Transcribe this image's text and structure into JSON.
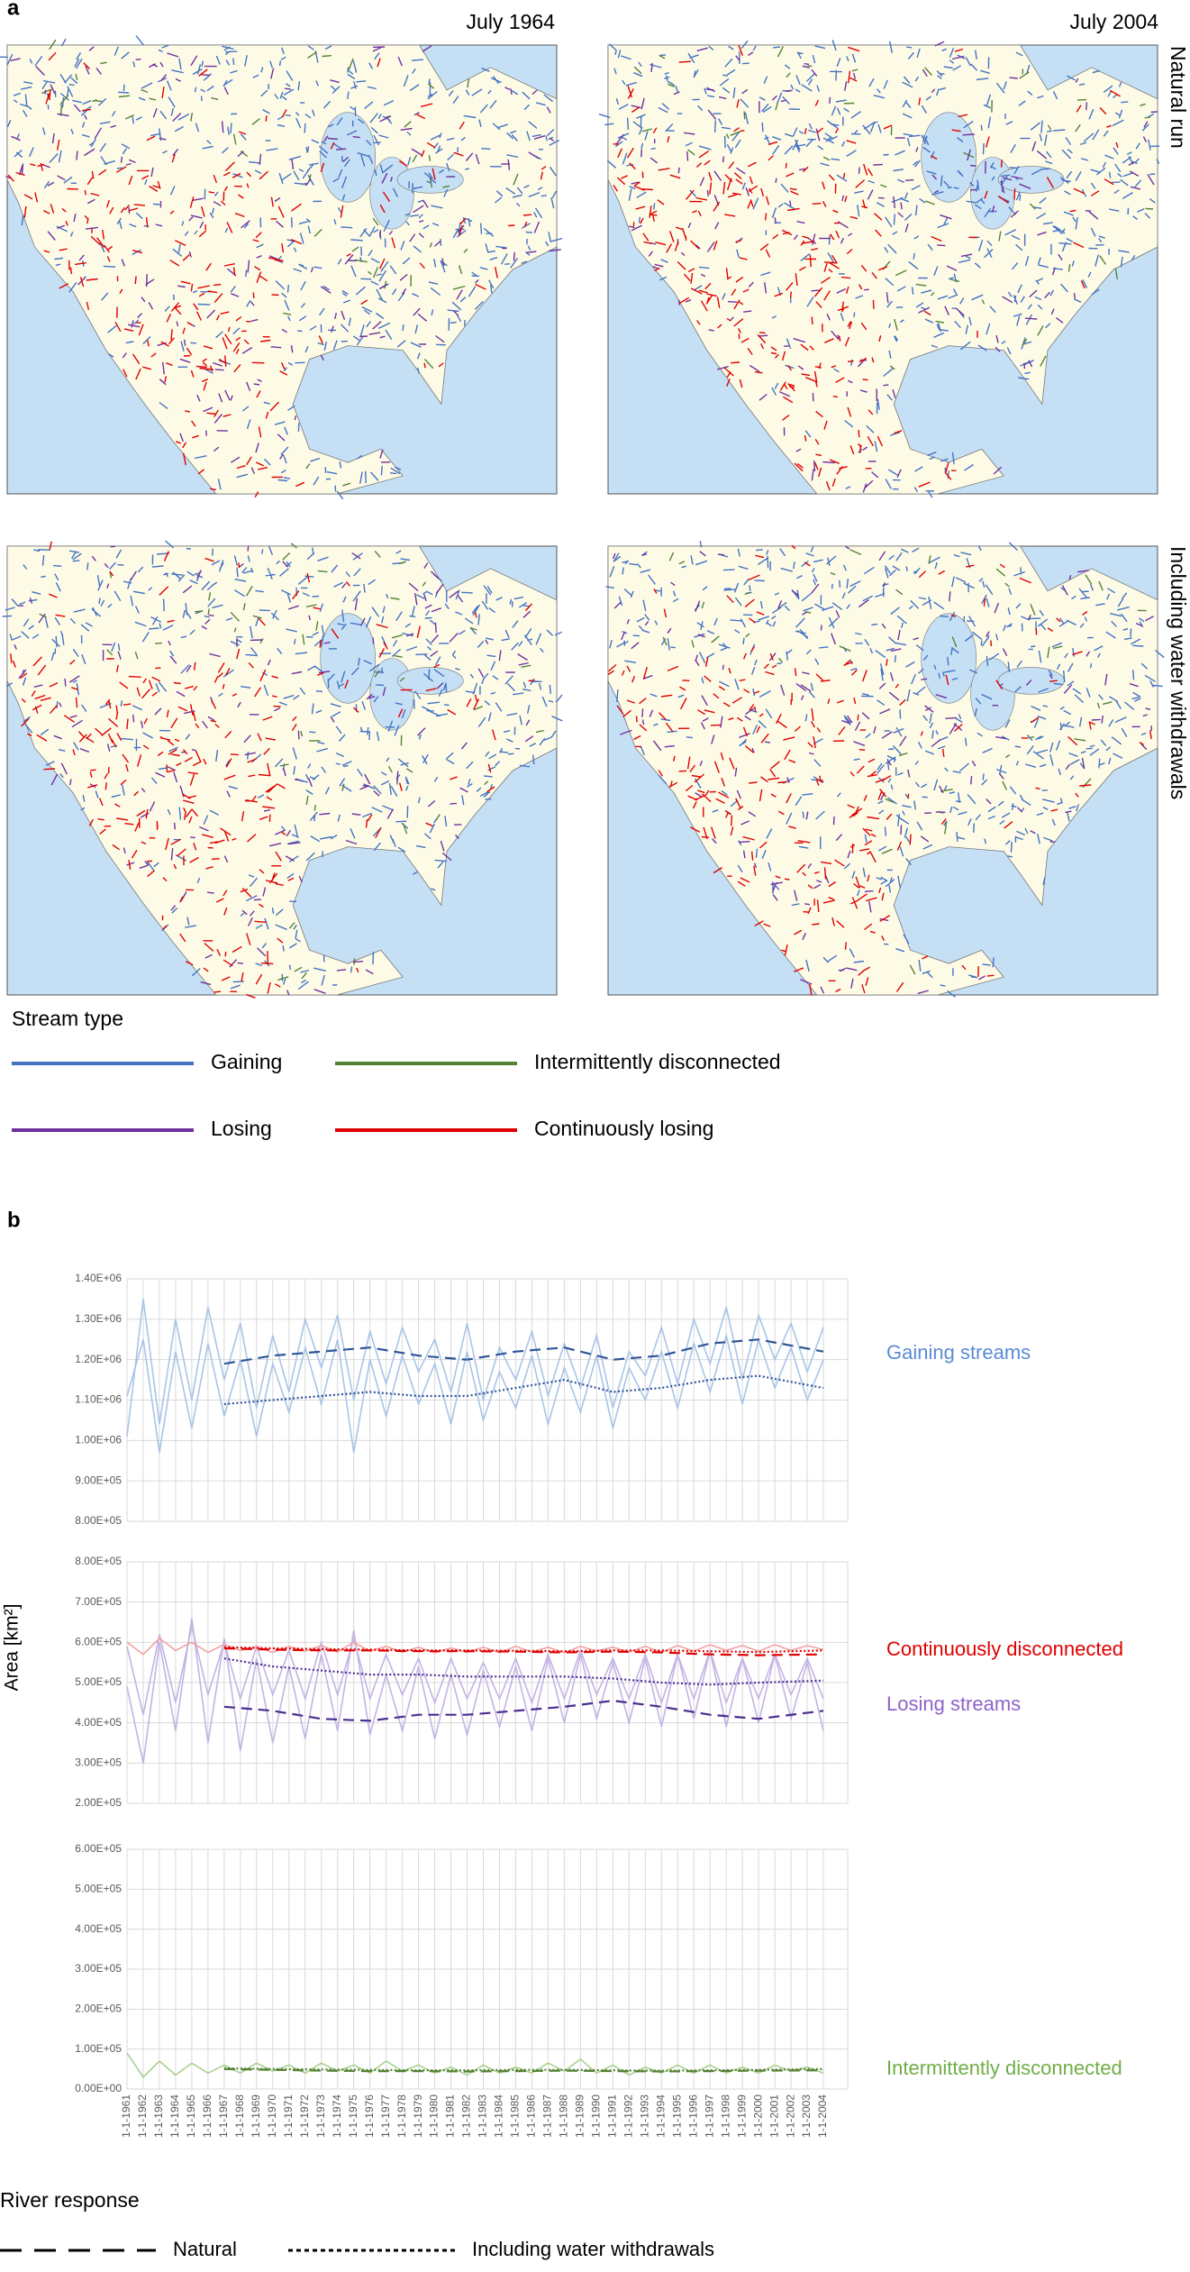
{
  "panel_a": {
    "label": "a",
    "columns": [
      "July 1964",
      "July 2004"
    ],
    "rows": [
      "Natural run",
      "Including water withdrawals"
    ],
    "legend_title": "Stream type",
    "legend": [
      {
        "name": "Gaining",
        "color": "#4472c4"
      },
      {
        "name": "Intermittently disconnected",
        "color": "#548235"
      },
      {
        "name": "Losing",
        "color": "#7030a0"
      },
      {
        "name": "Continuously losing",
        "color": "#e00000"
      }
    ]
  },
  "panel_b": {
    "label": "b",
    "y_axis_label": "Area [km²]",
    "legend_title": "River response",
    "legend": [
      {
        "name": "Natural",
        "line_style": "dashed"
      },
      {
        "name": "Including water withdrawals",
        "line_style": "dotted"
      }
    ]
  },
  "chart_data": [
    {
      "type": "line",
      "labels": [
        {
          "text": "Gaining streams",
          "color": "#5b8bd4"
        }
      ],
      "ylim": [
        800000,
        1400000
      ],
      "yticks": [
        {
          "value": 800000,
          "label": "8.00E+05"
        },
        {
          "value": 900000,
          "label": "9.00E+05"
        },
        {
          "value": 1000000,
          "label": "1.00E+06"
        },
        {
          "value": 1100000,
          "label": "1.10E+06"
        },
        {
          "value": 1200000,
          "label": "1.20E+06"
        },
        {
          "value": 1300000,
          "label": "1.30E+06"
        },
        {
          "value": 1400000,
          "label": "1.40E+06"
        }
      ],
      "x": [
        1961,
        1962,
        1963,
        1964,
        1965,
        1966,
        1967,
        1968,
        1969,
        1970,
        1971,
        1972,
        1973,
        1974,
        1975,
        1976,
        1977,
        1978,
        1979,
        1980,
        1981,
        1982,
        1983,
        1984,
        1985,
        1986,
        1987,
        1988,
        1989,
        1990,
        1991,
        1992,
        1993,
        1994,
        1995,
        1996,
        1997,
        1998,
        1999,
        2000,
        2001,
        2002,
        2003,
        2004
      ],
      "series": [
        {
          "color": "#a9c4e8",
          "line_style": "solid",
          "values": [
            1010000,
            1350000,
            1040000,
            1300000,
            1100000,
            1330000,
            1150000,
            1290000,
            1080000,
            1260000,
            1120000,
            1300000,
            1180000,
            1310000,
            1100000,
            1270000,
            1140000,
            1280000,
            1170000,
            1250000,
            1120000,
            1290000,
            1100000,
            1230000,
            1150000,
            1270000,
            1110000,
            1240000,
            1130000,
            1260000,
            1080000,
            1220000,
            1160000,
            1280000,
            1140000,
            1300000,
            1190000,
            1330000,
            1150000,
            1310000,
            1200000,
            1290000,
            1170000,
            1280000
          ]
        },
        {
          "color": "#a9c4e8",
          "line_style": "solid",
          "values": [
            1110000,
            1250000,
            970000,
            1220000,
            1030000,
            1240000,
            1060000,
            1200000,
            1010000,
            1190000,
            1070000,
            1230000,
            1090000,
            1250000,
            970000,
            1200000,
            1060000,
            1210000,
            1090000,
            1190000,
            1040000,
            1220000,
            1050000,
            1170000,
            1080000,
            1210000,
            1040000,
            1180000,
            1070000,
            1210000,
            1030000,
            1180000,
            1100000,
            1220000,
            1080000,
            1240000,
            1120000,
            1260000,
            1090000,
            1250000,
            1130000,
            1230000,
            1100000,
            1200000
          ]
        },
        {
          "color": "#2f5597",
          "line_style": "dashed",
          "x": [
            1967,
            1970,
            1973,
            1976,
            1979,
            1982,
            1985,
            1988,
            1991,
            1994,
            1997,
            2000,
            2004
          ],
          "values": [
            1190000,
            1210000,
            1220000,
            1230000,
            1210000,
            1200000,
            1220000,
            1230000,
            1200000,
            1210000,
            1240000,
            1250000,
            1220000
          ]
        },
        {
          "color": "#2f5597",
          "line_style": "dotted",
          "x": [
            1967,
            1970,
            1973,
            1976,
            1979,
            1982,
            1985,
            1988,
            1991,
            1994,
            1997,
            2000,
            2004
          ],
          "values": [
            1090000,
            1100000,
            1110000,
            1120000,
            1110000,
            1110000,
            1130000,
            1150000,
            1120000,
            1130000,
            1150000,
            1160000,
            1130000
          ]
        }
      ]
    },
    {
      "type": "line",
      "labels": [
        {
          "text": "Continuously disconnected",
          "color": "#e00000"
        },
        {
          "text": "Losing streams",
          "color": "#8e63c9"
        }
      ],
      "ylim": [
        200000,
        800000
      ],
      "yticks": [
        {
          "value": 200000,
          "label": "2.00E+05"
        },
        {
          "value": 300000,
          "label": "3.00E+05"
        },
        {
          "value": 400000,
          "label": "4.00E+05"
        },
        {
          "value": 500000,
          "label": "5.00E+05"
        },
        {
          "value": 600000,
          "label": "6.00E+05"
        },
        {
          "value": 700000,
          "label": "7.00E+05"
        },
        {
          "value": 800000,
          "label": "8.00E+05"
        }
      ],
      "x": [
        1961,
        1962,
        1963,
        1964,
        1965,
        1966,
        1967,
        1968,
        1969,
        1970,
        1971,
        1972,
        1973,
        1974,
        1975,
        1976,
        1977,
        1978,
        1979,
        1980,
        1981,
        1982,
        1983,
        1984,
        1985,
        1986,
        1987,
        1988,
        1989,
        1990,
        1991,
        1992,
        1993,
        1994,
        1995,
        1996,
        1997,
        1998,
        1999,
        2000,
        2001,
        2002,
        2003,
        2004
      ],
      "series": [
        {
          "color": "#c4b3e4",
          "line_style": "solid",
          "values": [
            490000,
            300000,
            600000,
            380000,
            660000,
            350000,
            610000,
            330000,
            560000,
            350000,
            540000,
            360000,
            570000,
            380000,
            630000,
            370000,
            520000,
            380000,
            540000,
            360000,
            520000,
            370000,
            530000,
            390000,
            540000,
            380000,
            560000,
            400000,
            570000,
            410000,
            550000,
            400000,
            560000,
            390000,
            570000,
            410000,
            580000,
            390000,
            560000,
            400000,
            570000,
            410000,
            550000,
            380000
          ]
        },
        {
          "color": "#c4b3e4",
          "line_style": "solid",
          "values": [
            590000,
            420000,
            620000,
            450000,
            640000,
            470000,
            600000,
            460000,
            590000,
            470000,
            580000,
            460000,
            600000,
            470000,
            610000,
            460000,
            570000,
            470000,
            560000,
            450000,
            560000,
            460000,
            550000,
            460000,
            560000,
            450000,
            570000,
            460000,
            580000,
            470000,
            560000,
            460000,
            570000,
            450000,
            570000,
            460000,
            580000,
            450000,
            560000,
            460000,
            570000,
            470000,
            560000,
            460000
          ]
        },
        {
          "color": "#f4a0a0",
          "line_style": "solid",
          "values": [
            600000,
            570000,
            610000,
            580000,
            600000,
            575000,
            595000,
            580000,
            590000,
            575000,
            590000,
            578000,
            592000,
            576000,
            600000,
            578000,
            590000,
            576000,
            588000,
            574000,
            586000,
            575000,
            588000,
            574000,
            590000,
            576000,
            588000,
            574000,
            590000,
            578000,
            588000,
            576000,
            590000,
            575000,
            592000,
            578000,
            594000,
            580000,
            592000,
            578000,
            594000,
            580000,
            592000,
            582000
          ]
        },
        {
          "color": "#4b2d8f",
          "line_style": "dashed",
          "x": [
            1967,
            1970,
            1973,
            1976,
            1979,
            1982,
            1985,
            1988,
            1991,
            1994,
            1997,
            2000,
            2004
          ],
          "values": [
            440000,
            430000,
            410000,
            405000,
            420000,
            420000,
            430000,
            440000,
            455000,
            440000,
            420000,
            410000,
            430000
          ]
        },
        {
          "color": "#4b2d8f",
          "line_style": "dotted",
          "x": [
            1967,
            1970,
            1973,
            1976,
            1979,
            1982,
            1985,
            1988,
            1991,
            1994,
            1997,
            2000,
            2004
          ],
          "values": [
            560000,
            540000,
            530000,
            520000,
            520000,
            515000,
            515000,
            515000,
            510000,
            500000,
            495000,
            500000,
            505000
          ]
        },
        {
          "color": "#e00000",
          "line_style": "dashed",
          "x": [
            1967,
            1970,
            1973,
            1976,
            1979,
            1982,
            1985,
            1988,
            1991,
            1994,
            1997,
            2000,
            2004
          ],
          "values": [
            585000,
            582000,
            580000,
            580000,
            578000,
            578000,
            577000,
            575000,
            577000,
            575000,
            570000,
            568000,
            570000
          ]
        },
        {
          "color": "#e00000",
          "line_style": "dotted",
          "x": [
            1967,
            1970,
            1973,
            1976,
            1979,
            1982,
            1985,
            1988,
            1991,
            1994,
            1997,
            2000,
            2004
          ],
          "values": [
            588000,
            585000,
            583000,
            582000,
            580000,
            580000,
            579000,
            578000,
            580000,
            580000,
            578000,
            576000,
            580000
          ]
        }
      ]
    },
    {
      "type": "line",
      "labels": [
        {
          "text": "Intermittently disconnected",
          "color": "#70ad47"
        }
      ],
      "ylim": [
        0,
        600000
      ],
      "yticks": [
        {
          "value": 0,
          "label": "0.00E+00"
        },
        {
          "value": 100000,
          "label": "1.00E+05"
        },
        {
          "value": 200000,
          "label": "2.00E+05"
        },
        {
          "value": 300000,
          "label": "3.00E+05"
        },
        {
          "value": 400000,
          "label": "4.00E+05"
        },
        {
          "value": 500000,
          "label": "5.00E+05"
        },
        {
          "value": 600000,
          "label": "6.00E+05"
        }
      ],
      "xlim": [
        1961,
        2005.5
      ],
      "xticks": [
        {
          "value": 1961,
          "label": "1-1-1961"
        },
        {
          "value": 1962,
          "label": "1-1-1962"
        },
        {
          "value": 1963,
          "label": "1-1-1963"
        },
        {
          "value": 1964,
          "label": "1-1-1964"
        },
        {
          "value": 1965,
          "label": "1-1-1965"
        },
        {
          "value": 1966,
          "label": "1-1-1966"
        },
        {
          "value": 1967,
          "label": "1-1-1967"
        },
        {
          "value": 1968,
          "label": "1-1-1968"
        },
        {
          "value": 1969,
          "label": "1-1-1969"
        },
        {
          "value": 1970,
          "label": "1-1-1970"
        },
        {
          "value": 1971,
          "label": "1-1-1971"
        },
        {
          "value": 1972,
          "label": "1-1-1972"
        },
        {
          "value": 1973,
          "label": "1-1-1973"
        },
        {
          "value": 1974,
          "label": "1-1-1974"
        },
        {
          "value": 1975,
          "label": "1-1-1975"
        },
        {
          "value": 1976,
          "label": "1-1-1976"
        },
        {
          "value": 1977,
          "label": "1-1-1977"
        },
        {
          "value": 1978,
          "label": "1-1-1978"
        },
        {
          "value": 1979,
          "label": "1-1-1979"
        },
        {
          "value": 1980,
          "label": "1-1-1980"
        },
        {
          "value": 1981,
          "label": "1-1-1981"
        },
        {
          "value": 1982,
          "label": "1-1-1982"
        },
        {
          "value": 1983,
          "label": "1-1-1983"
        },
        {
          "value": 1984,
          "label": "1-1-1984"
        },
        {
          "value": 1985,
          "label": "1-1-1985"
        },
        {
          "value": 1986,
          "label": "1-1-1986"
        },
        {
          "value": 1987,
          "label": "1-1-1987"
        },
        {
          "value": 1988,
          "label": "1-1-1988"
        },
        {
          "value": 1989,
          "label": "1-1-1989"
        },
        {
          "value": 1990,
          "label": "1-1-1990"
        },
        {
          "value": 1991,
          "label": "1-1-1991"
        },
        {
          "value": 1992,
          "label": "1-1-1992"
        },
        {
          "value": 1993,
          "label": "1-1-1993"
        },
        {
          "value": 1994,
          "label": "1-1-1994"
        },
        {
          "value": 1995,
          "label": "1-1-1995"
        },
        {
          "value": 1996,
          "label": "1-1-1996"
        },
        {
          "value": 1997,
          "label": "1-1-1997"
        },
        {
          "value": 1998,
          "label": "1-1-1998"
        },
        {
          "value": 1999,
          "label": "1-1-1999"
        },
        {
          "value": 2000,
          "label": "1-1-2000"
        },
        {
          "value": 2001,
          "label": "1-1-2001"
        },
        {
          "value": 2002,
          "label": "1-1-2002"
        },
        {
          "value": 2003,
          "label": "1-1-2003"
        },
        {
          "value": 2004,
          "label": "1-1-2004"
        }
      ],
      "x": [
        1961,
        1962,
        1963,
        1964,
        1965,
        1966,
        1967,
        1968,
        1969,
        1970,
        1971,
        1972,
        1973,
        1974,
        1975,
        1976,
        1977,
        1978,
        1979,
        1980,
        1981,
        1982,
        1983,
        1984,
        1985,
        1986,
        1987,
        1988,
        1989,
        1990,
        1991,
        1992,
        1993,
        1994,
        1995,
        1996,
        1997,
        1998,
        1999,
        2000,
        2001,
        2002,
        2003,
        2004
      ],
      "series": [
        {
          "color": "#a9d18e",
          "line_style": "solid",
          "values": [
            90000,
            30000,
            70000,
            35000,
            65000,
            40000,
            60000,
            40000,
            65000,
            45000,
            60000,
            40000,
            65000,
            45000,
            60000,
            40000,
            70000,
            45000,
            60000,
            40000,
            55000,
            35000,
            60000,
            40000,
            55000,
            40000,
            65000,
            45000,
            75000,
            40000,
            60000,
            35000,
            55000,
            40000,
            60000,
            40000,
            60000,
            40000,
            55000,
            40000,
            60000,
            45000,
            55000,
            40000
          ]
        },
        {
          "color": "#548235",
          "line_style": "dashed",
          "x": [
            1967,
            1970,
            1973,
            1976,
            1979,
            1982,
            1985,
            1988,
            1991,
            1994,
            1997,
            2000,
            2004
          ],
          "values": [
            50000,
            48000,
            46000,
            45000,
            45000,
            44000,
            45000,
            46000,
            45000,
            44000,
            45000,
            46000,
            47000
          ]
        },
        {
          "color": "#548235",
          "line_style": "dotted",
          "x": [
            1967,
            1970,
            1973,
            1976,
            1979,
            1982,
            1985,
            1988,
            1991,
            1994,
            1997,
            2000,
            2004
          ],
          "values": [
            52000,
            50000,
            49000,
            48000,
            47000,
            47000,
            48000,
            48000,
            47000,
            46000,
            47000,
            48000,
            50000
          ]
        }
      ]
    }
  ]
}
